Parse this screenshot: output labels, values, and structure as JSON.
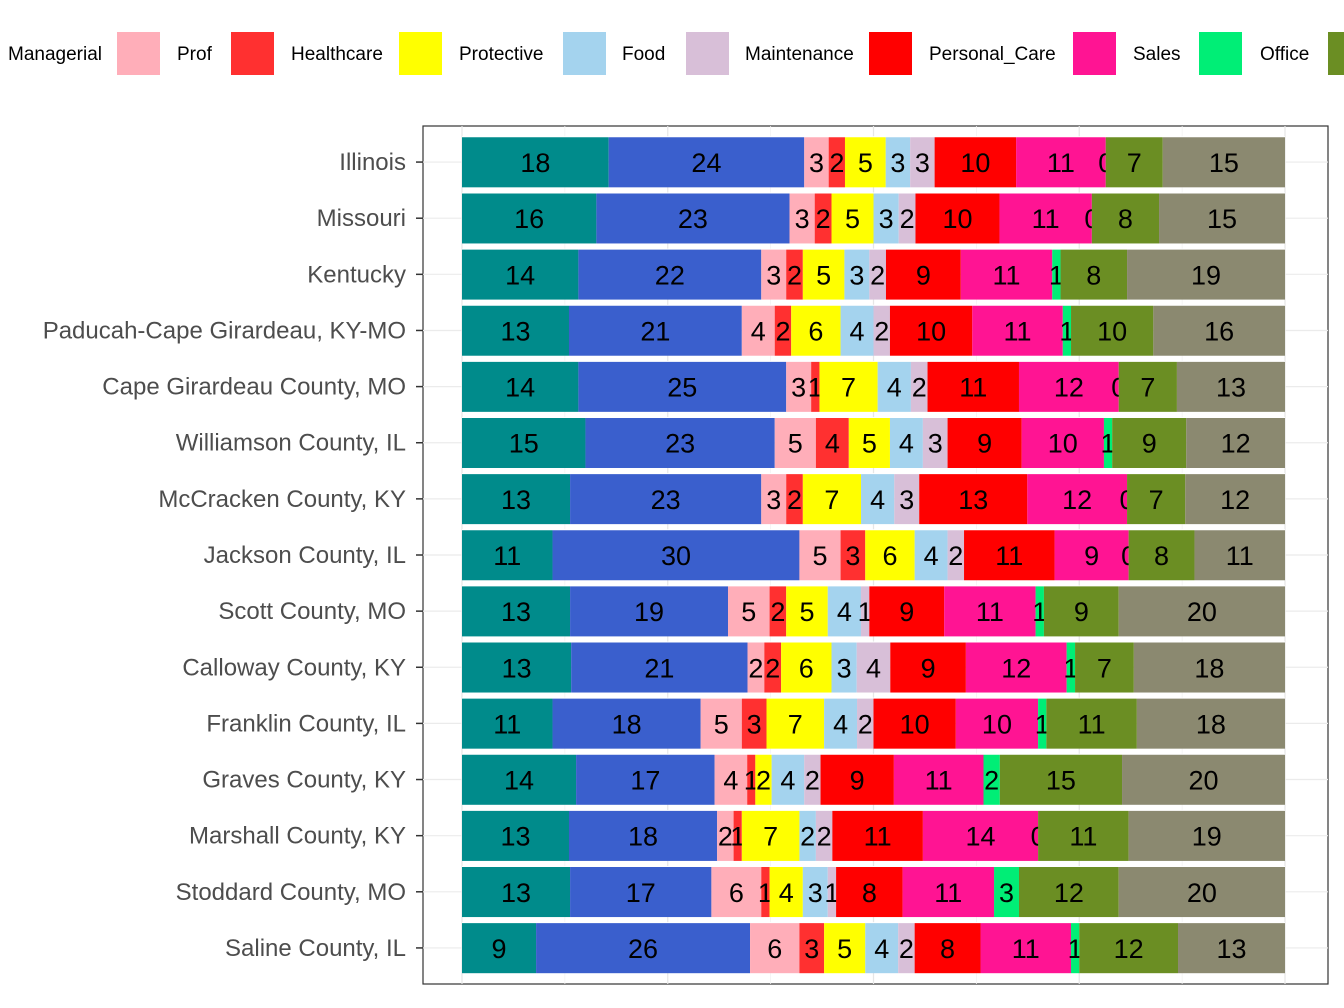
{
  "chart_data": {
    "type": "bar",
    "orientation": "horizontal",
    "stacked": true,
    "normalized": true,
    "legend_position": "top",
    "grid": true,
    "title": "",
    "xlabel": "",
    "ylabel": "",
    "series": [
      {
        "name": "",
        "color": "#008B8B"
      },
      {
        "name": "Managerial",
        "color": "#3A5FCD"
      },
      {
        "name": "Prof",
        "color": "#FFAEB9"
      },
      {
        "name": "Healthcare",
        "color": "#FF3030"
      },
      {
        "name": "Protective",
        "color": "#FFFF00"
      },
      {
        "name": "Food",
        "color": "#A4D3EE"
      },
      {
        "name": "Maintenance",
        "color": "#D8BFD8"
      },
      {
        "name": "Personal_Care",
        "color": "#FF0000"
      },
      {
        "name": "Sales",
        "color": "#FF1493"
      },
      {
        "name": "Office",
        "color": "#00EE76"
      },
      {
        "name": "",
        "color": "#6B8E23"
      },
      {
        "name": "",
        "color": "#8B8970"
      }
    ],
    "categories": [
      "Illinois",
      "Missouri",
      "Kentucky",
      "Paducah-Cape Girardeau, KY-MO",
      "Cape Girardeau County, MO",
      "Williamson County, IL",
      "McCracken County, KY",
      "Jackson County, IL",
      "Scott County, MO",
      "Calloway County, KY",
      "Franklin County, IL",
      "Graves County, KY",
      "Marshall County, KY",
      "Stoddard County, MO",
      "Saline County, IL"
    ],
    "values": [
      [
        18,
        24,
        3,
        2,
        5,
        3,
        3,
        10,
        11,
        0,
        7,
        15
      ],
      [
        16,
        23,
        3,
        2,
        5,
        3,
        2,
        10,
        11,
        0,
        8,
        15
      ],
      [
        14,
        22,
        3,
        2,
        5,
        3,
        2,
        9,
        11,
        1,
        8,
        19
      ],
      [
        13,
        21,
        4,
        2,
        6,
        4,
        2,
        10,
        11,
        1,
        10,
        16
      ],
      [
        14,
        25,
        3,
        1,
        7,
        4,
        2,
        11,
        12,
        0,
        7,
        13
      ],
      [
        15,
        23,
        5,
        4,
        5,
        4,
        3,
        9,
        10,
        1,
        9,
        12
      ],
      [
        13,
        23,
        3,
        2,
        7,
        4,
        3,
        13,
        12,
        0,
        7,
        12
      ],
      [
        11,
        30,
        5,
        3,
        6,
        4,
        2,
        11,
        9,
        0,
        8,
        11
      ],
      [
        13,
        19,
        5,
        2,
        5,
        4,
        1,
        9,
        11,
        1,
        9,
        20
      ],
      [
        13,
        21,
        2,
        2,
        6,
        3,
        4,
        9,
        12,
        1,
        7,
        18
      ],
      [
        11,
        18,
        5,
        3,
        7,
        4,
        2,
        10,
        10,
        1,
        11,
        18
      ],
      [
        14,
        17,
        4,
        1,
        2,
        4,
        2,
        9,
        11,
        2,
        15,
        20
      ],
      [
        13,
        18,
        2,
        1,
        7,
        2,
        2,
        11,
        14,
        0,
        11,
        19
      ],
      [
        13,
        17,
        6,
        1,
        4,
        3,
        1,
        8,
        11,
        3,
        12,
        20
      ],
      [
        9,
        26,
        6,
        3,
        5,
        4,
        2,
        8,
        11,
        1,
        12,
        13
      ]
    ]
  }
}
